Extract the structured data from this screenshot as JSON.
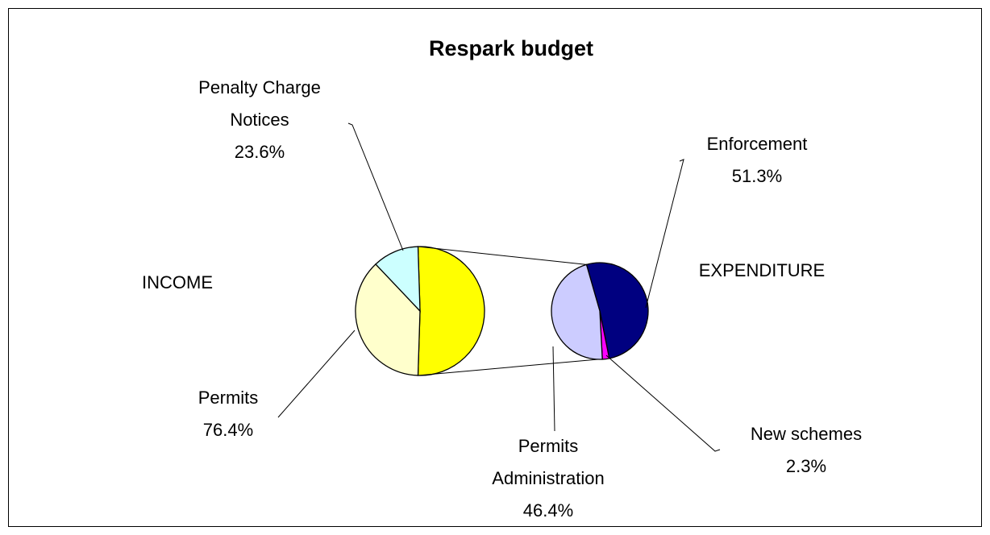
{
  "chart_data": {
    "type": "pie-of-pie",
    "title": "Respark budget",
    "groups": [
      {
        "name": "INCOME",
        "value": 49,
        "categories": [
          "Penalty Charge\nNotices",
          "Permits"
        ],
        "values": [
          23.6,
          76.4
        ],
        "value_labels": [
          "23.6%",
          "76.4%"
        ],
        "colors": [
          "#ccffff",
          "#ffffcc"
        ]
      },
      {
        "name": "EXPENDITURE",
        "value": 51,
        "color": "#ffff00",
        "categories": [
          "Enforcement",
          "New schemes",
          "Permits\nAdministration"
        ],
        "values": [
          51.3,
          2.3,
          46.4
        ],
        "value_labels": [
          "51.3%",
          "2.3%",
          "46.4%"
        ],
        "colors": [
          "#000080",
          "#ff00ff",
          "#ccccff"
        ]
      }
    ]
  }
}
